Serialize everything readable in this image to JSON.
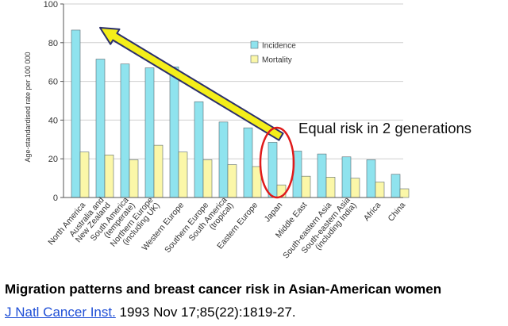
{
  "chart_data": {
    "type": "bar",
    "ylabel": "Age-standardised rate per 100 000",
    "ylim": [
      0,
      100
    ],
    "yticks": [
      0,
      20,
      40,
      60,
      80,
      100
    ],
    "categories": [
      "North America",
      "Australia and New Zealand",
      "South America (temperate)",
      "Northern Europe (including UK)",
      "Western Europe",
      "Southern Europe",
      "South America (tropical)",
      "Eastern Europe",
      "Japan",
      "Middle East",
      "South-eastern Asia",
      "South-eastern Asia (including India)",
      "Africa",
      "China"
    ],
    "category_lines": [
      [
        "North America"
      ],
      [
        "Australia and",
        "New Zealand"
      ],
      [
        "South America",
        "(temperate)"
      ],
      [
        "Northern Europe",
        "(including UK)"
      ],
      [
        "Western Europe"
      ],
      [
        "Southern Europe"
      ],
      [
        "South America",
        "(tropical)"
      ],
      [
        "Eastern Europe"
      ],
      [
        "Japan"
      ],
      [
        "Middle East"
      ],
      [
        "South-eastern Asia"
      ],
      [
        "South-eastern Asia",
        "(including India)"
      ],
      [
        "Africa"
      ],
      [
        "China"
      ]
    ],
    "series": [
      {
        "name": "Incidence",
        "color": "#8fe3ee",
        "values": [
          86.5,
          71.5,
          69,
          67,
          67.5,
          49.5,
          39,
          36,
          28.5,
          24,
          22.5,
          21,
          19.5,
          12
        ]
      },
      {
        "name": "Mortality",
        "color": "#fbf7a8",
        "values": [
          23.5,
          22,
          19.5,
          27,
          23.5,
          19.5,
          17,
          16,
          6.5,
          11,
          10.5,
          10,
          8,
          4.5
        ]
      }
    ],
    "annotation": {
      "text": "Equal risk in 2 generations",
      "arrow_color": "#f4ee1a",
      "arrow_from": "Japan",
      "arrow_to": "North America",
      "circle_color": "#e01a1a",
      "circle_around": "Japan"
    }
  },
  "caption": {
    "title": "Migration patterns and breast cancer risk in Asian-American women",
    "journal": "J Natl Cancer Inst.",
    "details": " 1993 Nov 17;85(22):1819-27."
  }
}
